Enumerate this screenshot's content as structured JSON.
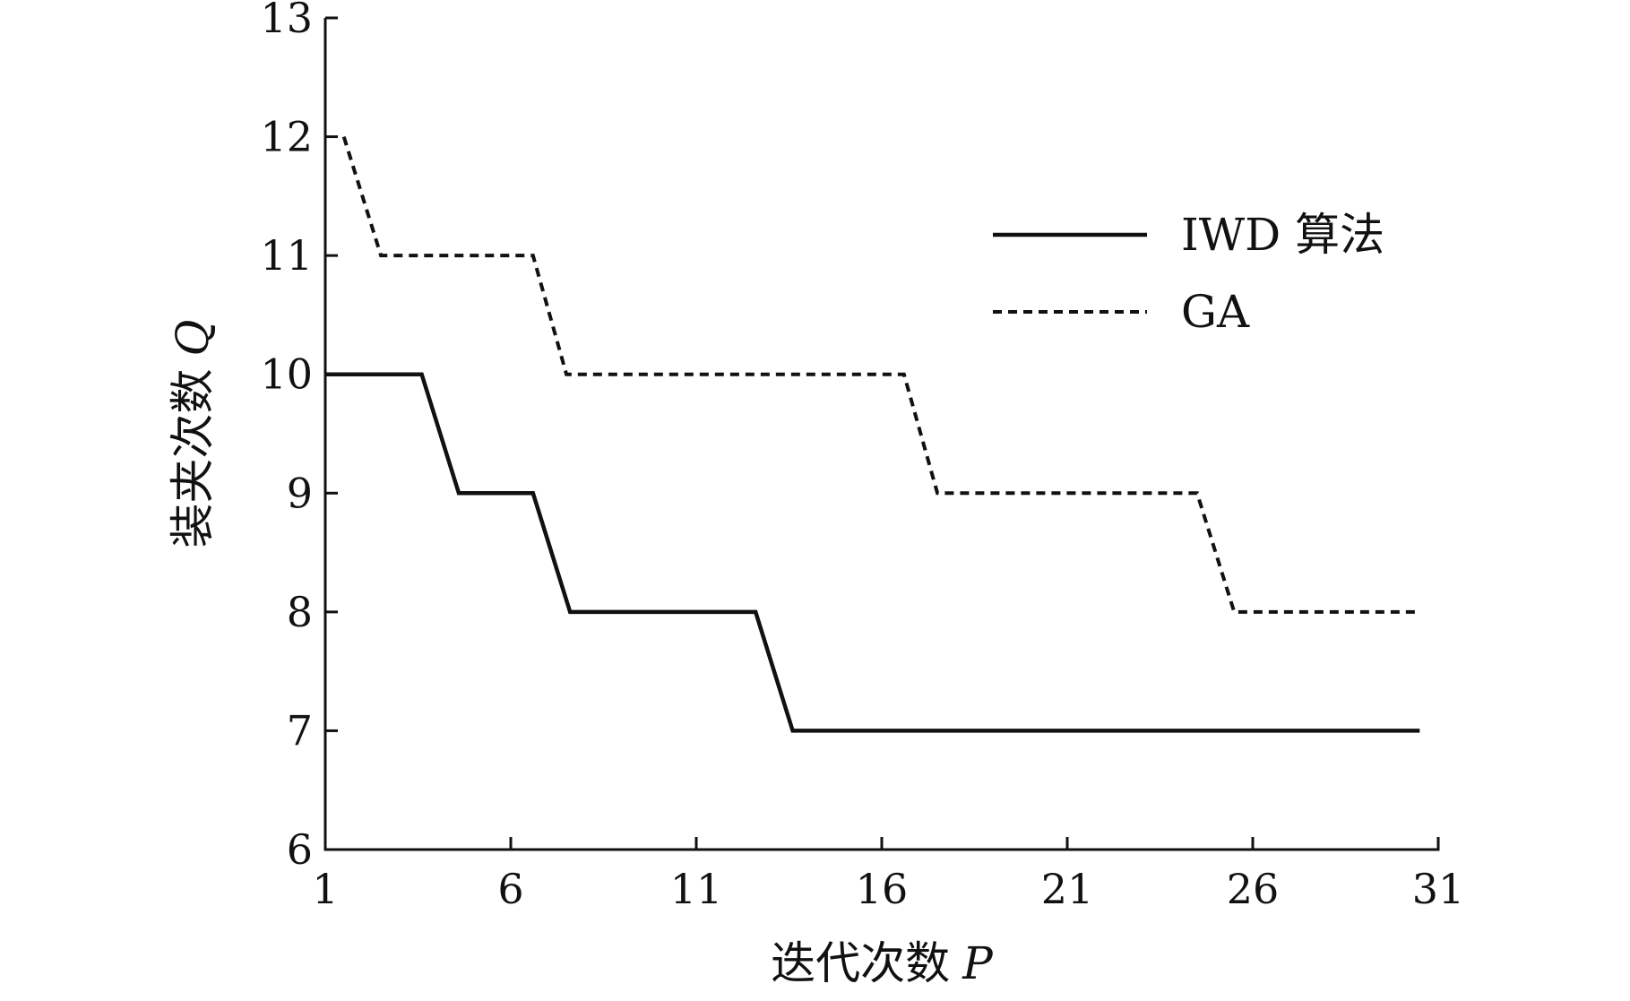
{
  "chart_data": {
    "type": "line",
    "xlabel_text": "迭代次数",
    "xlabel_var": "P",
    "ylabel_text": "装夹次数",
    "ylabel_var": "Q",
    "xlim": [
      1,
      31
    ],
    "ylim": [
      6,
      13
    ],
    "x_ticks": [
      1,
      6,
      11,
      16,
      21,
      26,
      31
    ],
    "x_tick_labels": [
      "1",
      "6",
      "11",
      "16",
      "21",
      "26",
      "31"
    ],
    "y_ticks": [
      6,
      7,
      8,
      9,
      10,
      11,
      12,
      13
    ],
    "y_tick_labels": [
      "6",
      "7",
      "8",
      "9",
      "10",
      "11",
      "12",
      "13"
    ],
    "grid": false,
    "legend_position": "top-right",
    "series": [
      {
        "name": "IWD 算法",
        "style": "solid",
        "color": "#111111",
        "x": [
          1,
          3.6,
          4.6,
          6.6,
          7.6,
          12.6,
          13.6,
          30.5
        ],
        "y": [
          10,
          10,
          9,
          9,
          8,
          8,
          7,
          7
        ]
      },
      {
        "name": "GA",
        "style": "dashed",
        "color": "#111111",
        "x": [
          1.5,
          2.5,
          6.6,
          7.5,
          16.6,
          17.5,
          24.5,
          25.5,
          30.5
        ],
        "y": [
          12,
          11,
          11,
          10,
          10,
          9,
          9,
          8,
          8
        ]
      }
    ]
  }
}
